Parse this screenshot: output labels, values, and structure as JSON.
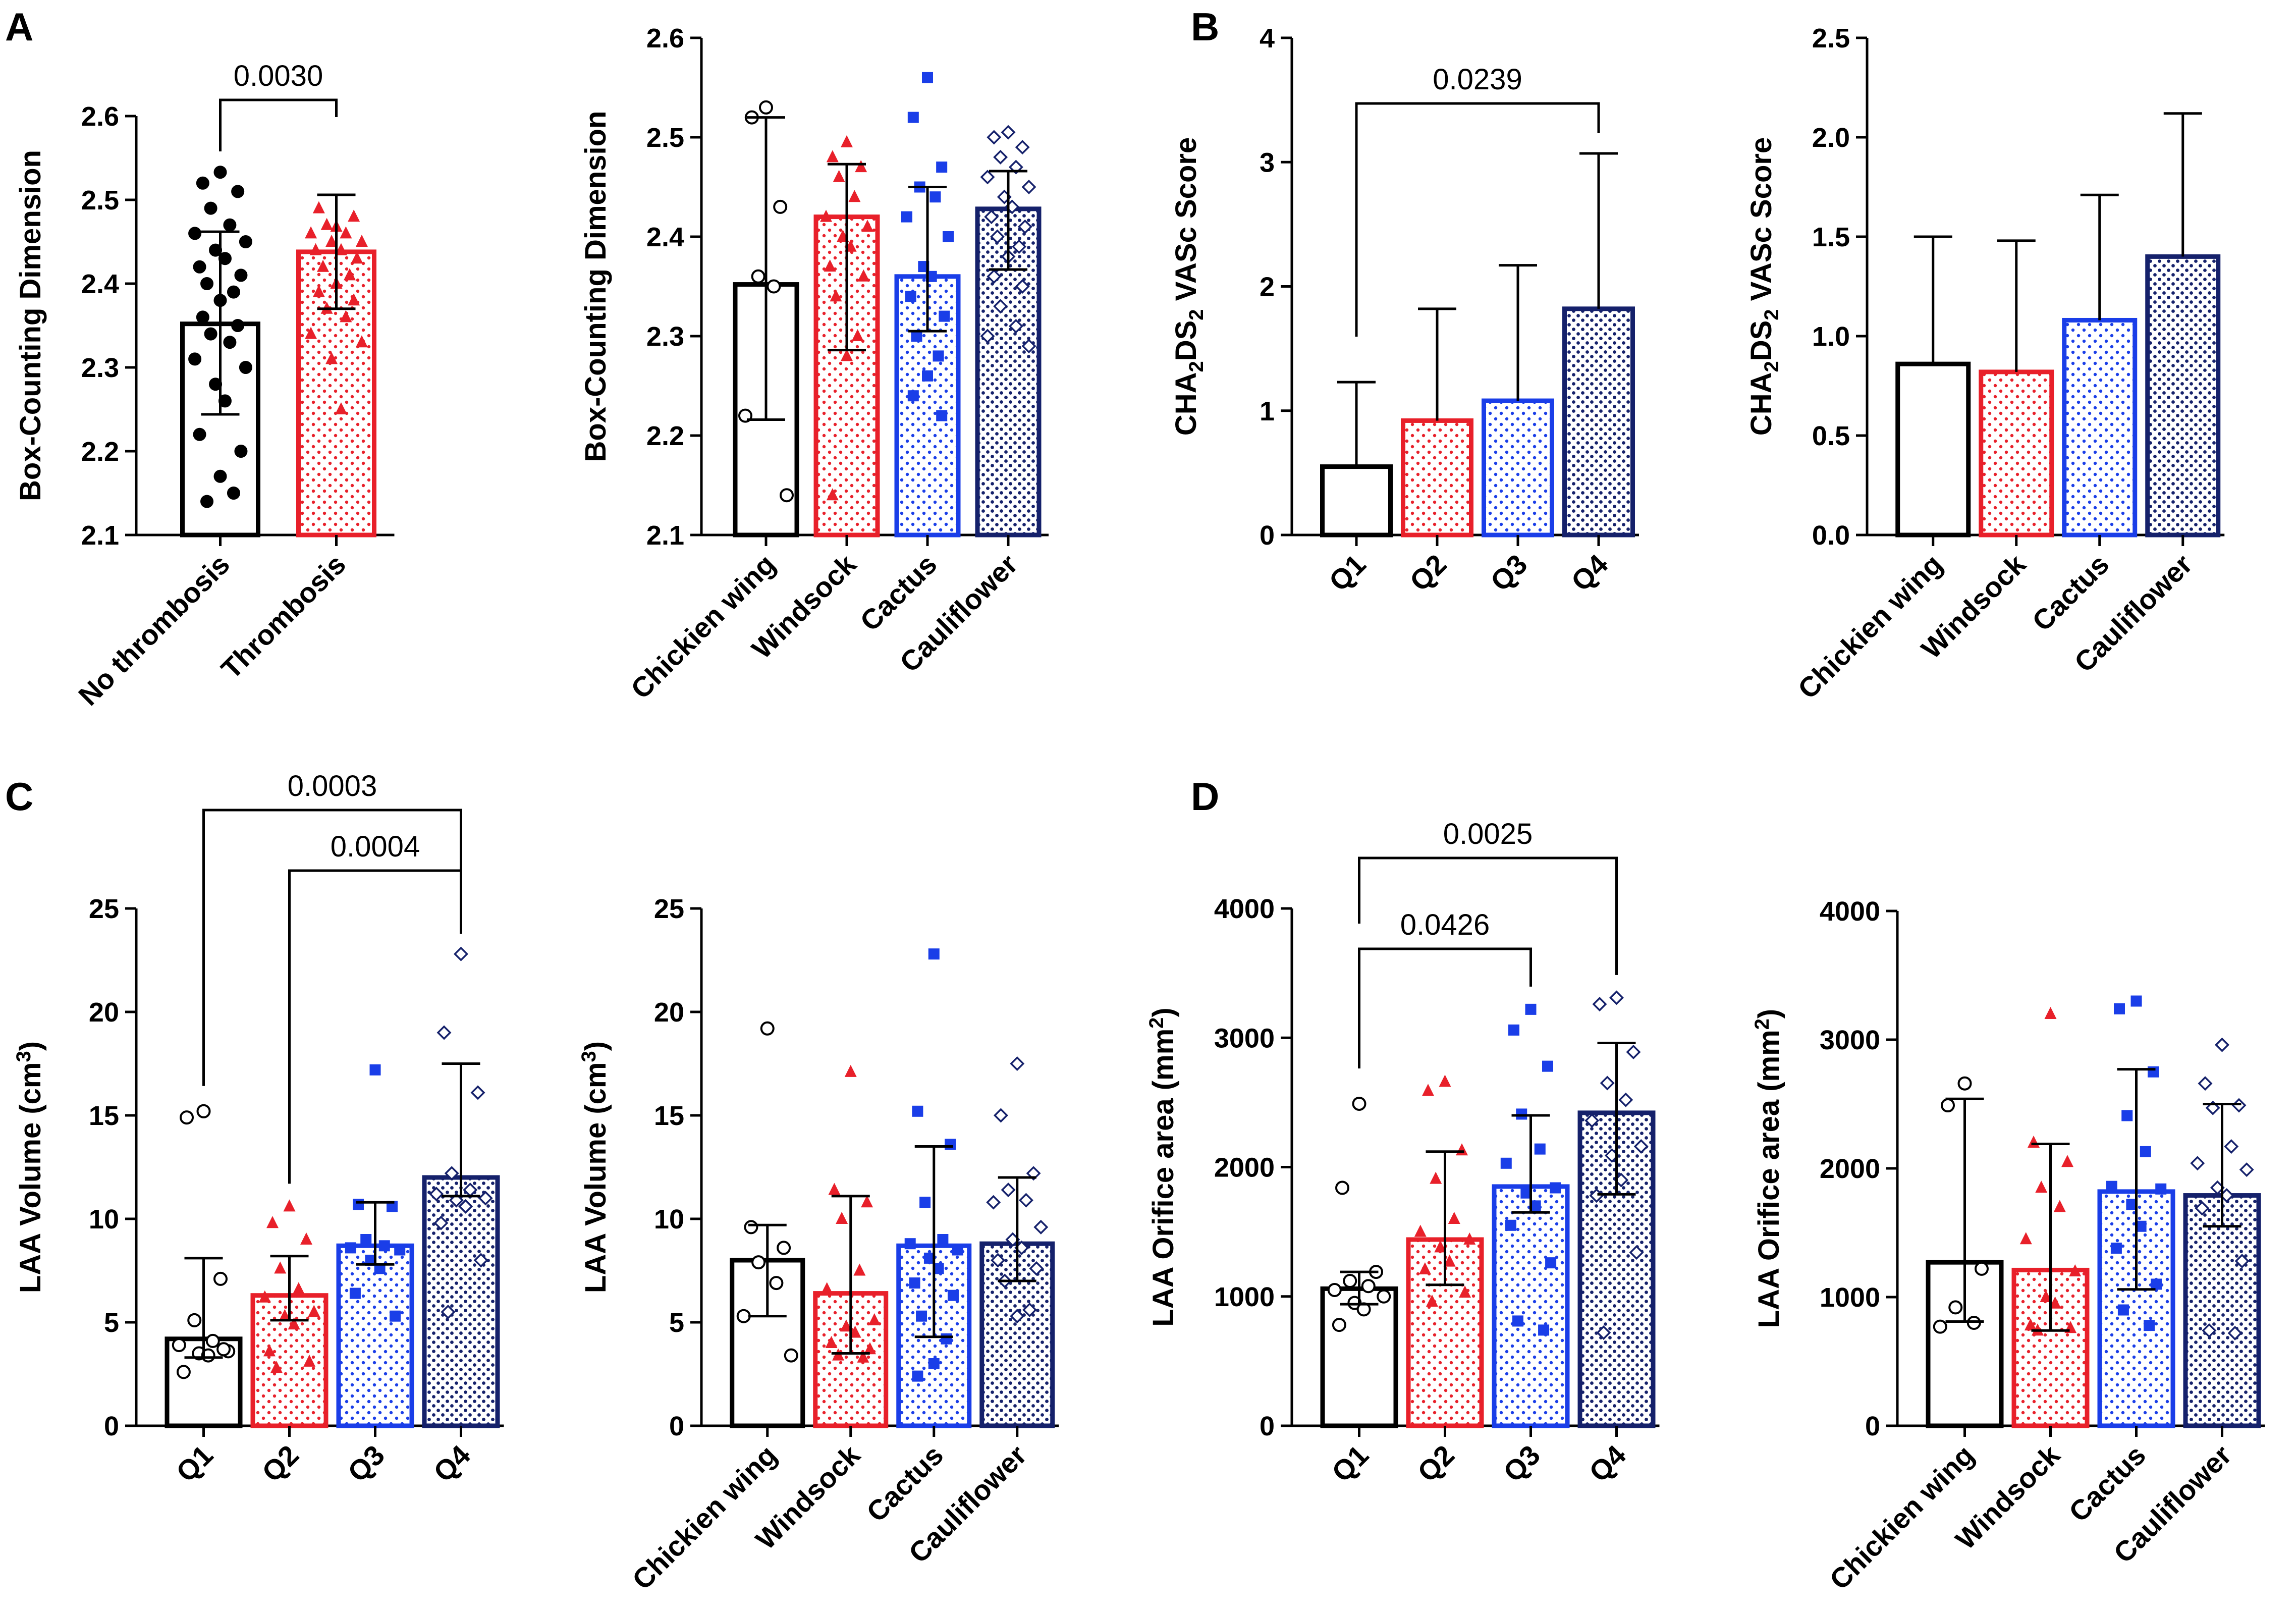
{
  "colors": {
    "black": "#000000",
    "red": "#e8202a",
    "blue": "#1a3ee8",
    "navy": "#15216b"
  },
  "panel_labels": [
    "A",
    "B",
    "C",
    "D"
  ],
  "chart_data": [
    {
      "id": "A1",
      "type": "bar",
      "panel": "A",
      "ylabel": "Box-Counting Dimension",
      "ylim": [
        2.1,
        2.6
      ],
      "yticks": [
        "2.1",
        "2.2",
        "2.3",
        "2.4",
        "2.5",
        "2.6"
      ],
      "categories": [
        "No thrombosis",
        "Thrombosis"
      ],
      "values": [
        2.352,
        2.438
      ],
      "error_high": [
        2.462,
        2.506
      ],
      "error_low": [
        2.244,
        2.37
      ],
      "points": [
        [
          2.533,
          2.52,
          2.51,
          2.49,
          2.47,
          2.46,
          2.45,
          2.44,
          2.43,
          2.42,
          2.41,
          2.4,
          2.39,
          2.38,
          2.36,
          2.35,
          2.34,
          2.33,
          2.31,
          2.3,
          2.28,
          2.26,
          2.22,
          2.2,
          2.14,
          2.15,
          2.17
        ],
        [
          2.468,
          2.49,
          2.48,
          2.47,
          2.46,
          2.46,
          2.45,
          2.45,
          2.44,
          2.44,
          2.43,
          2.42,
          2.41,
          2.4,
          2.39,
          2.38,
          2.37,
          2.36,
          2.34,
          2.33,
          2.31,
          2.25
        ]
      ],
      "comparisons": [
        {
          "from": 0,
          "to": 1,
          "p": "0.0030"
        }
      ]
    },
    {
      "id": "A2",
      "type": "bar",
      "panel": "",
      "ylabel": "Box-Counting Dimension",
      "ylim": [
        2.1,
        2.6
      ],
      "yticks": [
        "2.1",
        "2.2",
        "2.3",
        "2.4",
        "2.5",
        "2.6"
      ],
      "categories": [
        "Chickien wing",
        "Windsock",
        "Cactus",
        "Cauliflower"
      ],
      "values": [
        2.352,
        2.42,
        2.36,
        2.428
      ],
      "error_high": [
        2.52,
        2.473,
        2.45,
        2.466
      ],
      "error_low": [
        2.216,
        2.286,
        2.305,
        2.367
      ],
      "points": [
        [
          2.53,
          2.52,
          2.43,
          2.36,
          2.35,
          2.22,
          2.14
        ],
        [
          2.495,
          2.48,
          2.47,
          2.46,
          2.44,
          2.42,
          2.41,
          2.4,
          2.39,
          2.37,
          2.36,
          2.34,
          2.3,
          2.28,
          2.14
        ],
        [
          2.56,
          2.52,
          2.47,
          2.45,
          2.44,
          2.42,
          2.4,
          2.37,
          2.36,
          2.34,
          2.32,
          2.3,
          2.28,
          2.26,
          2.24,
          2.22
        ],
        [
          2.505,
          2.5,
          2.49,
          2.48,
          2.47,
          2.46,
          2.45,
          2.44,
          2.43,
          2.42,
          2.41,
          2.4,
          2.39,
          2.38,
          2.36,
          2.35,
          2.33,
          2.31,
          2.3,
          2.29
        ]
      ],
      "comparisons": []
    },
    {
      "id": "B1",
      "type": "bar",
      "panel": "B",
      "ylabel": "CHA2DS2 VASc Score",
      "ylabel_parts": [
        "CHA",
        "2",
        "DS",
        "2",
        " VASc Score"
      ],
      "ylim": [
        0,
        4
      ],
      "yticks": [
        "0",
        "1",
        "2",
        "3",
        "4"
      ],
      "categories": [
        "Q1",
        "Q2",
        "Q3",
        "Q4"
      ],
      "values": [
        0.55,
        0.92,
        1.08,
        1.82
      ],
      "error_high": [
        1.23,
        1.82,
        2.17,
        3.07
      ],
      "error_low": [],
      "points": [],
      "comparisons": [
        {
          "from": 0,
          "to": 3,
          "p": "0.0239"
        }
      ]
    },
    {
      "id": "B2",
      "type": "bar",
      "panel": "",
      "ylabel": "CHA2DS2 VASc Score",
      "ylabel_parts": [
        "CHA",
        "2",
        "DS",
        "2",
        " VASc Score"
      ],
      "ylim": [
        0,
        2.5
      ],
      "yticks": [
        "0.0",
        "0.5",
        "1.0",
        "1.5",
        "2.0",
        "2.5"
      ],
      "categories": [
        "Chickien wing",
        "Windsock",
        "Cactus",
        "Cauliflower"
      ],
      "values": [
        0.86,
        0.82,
        1.08,
        1.4
      ],
      "error_high": [
        1.5,
        1.48,
        1.71,
        2.12
      ],
      "error_low": [],
      "points": [],
      "comparisons": []
    },
    {
      "id": "C1",
      "type": "bar",
      "panel": "C",
      "ylabel": "LAA Volume (cm3)",
      "ylabel_parts": [
        "LAA Volume (cm",
        "3",
        ")"
      ],
      "ylim": [
        0,
        25
      ],
      "yticks": [
        "0",
        "5",
        "10",
        "15",
        "20",
        "25"
      ],
      "categories": [
        "Q1",
        "Q2",
        "Q3",
        "Q4"
      ],
      "values": [
        4.2,
        6.3,
        8.7,
        12.0
      ],
      "error_high": [
        8.1,
        8.2,
        10.8,
        17.5
      ],
      "error_low": [
        3.3,
        5.1,
        7.8,
        11.1
      ],
      "points": [
        [
          15.2,
          14.9,
          7.1,
          5.1,
          4.1,
          3.9,
          3.6,
          3.5,
          3.4,
          2.6,
          3.7
        ],
        [
          10.6,
          9.8,
          9.0,
          7.6,
          6.6,
          6.2,
          5.5,
          5.3,
          4.9,
          3.6,
          3.1,
          2.8
        ],
        [
          17.2,
          10.7,
          10.6,
          9.0,
          8.7,
          8.6,
          8.5,
          8.0,
          7.6,
          6.4,
          5.3
        ],
        [
          22.8,
          19.0,
          16.1,
          12.2,
          11.4,
          11.2,
          11.0,
          10.9,
          10.6,
          9.8,
          8.0,
          5.5
        ]
      ],
      "comparisons": [
        {
          "from": 0,
          "to": 3,
          "p": "0.0003"
        },
        {
          "from": 1,
          "to": 3,
          "p": "0.0004"
        }
      ]
    },
    {
      "id": "C2",
      "type": "bar",
      "panel": "",
      "ylabel": "LAA Volume (cm3)",
      "ylabel_parts": [
        "LAA Volume (cm",
        "3",
        ")"
      ],
      "ylim": [
        0,
        25
      ],
      "yticks": [
        "0",
        "5",
        "10",
        "15",
        "20",
        "25"
      ],
      "categories": [
        "Chickien wing",
        "Windsock",
        "Cactus",
        "Cauliflower"
      ],
      "values": [
        8.0,
        6.4,
        8.7,
        8.8
      ],
      "error_high": [
        9.7,
        11.1,
        13.5,
        12.0
      ],
      "error_low": [
        5.3,
        3.5,
        4.3,
        7.0
      ],
      "points": [
        [
          19.2,
          9.6,
          8.6,
          7.9,
          6.9,
          5.3,
          3.4
        ],
        [
          17.1,
          11.4,
          10.8,
          10.0,
          7.5,
          6.6,
          5.1,
          4.8,
          4.5,
          4.0,
          3.7,
          3.4,
          3.3
        ],
        [
          22.8,
          15.2,
          13.6,
          10.8,
          9.0,
          8.8,
          8.5,
          8.1,
          7.6,
          6.9,
          6.3,
          5.3,
          4.2,
          3.0,
          2.4
        ],
        [
          17.5,
          15.0,
          12.2,
          11.4,
          10.9,
          10.8,
          9.6,
          9.0,
          8.6,
          8.0,
          7.6,
          7.0,
          5.6,
          5.3
        ]
      ],
      "comparisons": []
    },
    {
      "id": "D1",
      "type": "bar",
      "panel": "D",
      "ylabel": "LAA Orifice area (mm2)",
      "ylabel_parts": [
        "LAA Orifice area (mm",
        "2",
        ")"
      ],
      "ylim": [
        0,
        4000
      ],
      "yticks": [
        "0",
        "1000",
        "2000",
        "3000",
        "4000"
      ],
      "categories": [
        "Q1",
        "Q2",
        "Q3",
        "Q4"
      ],
      "values": [
        1060,
        1440,
        1850,
        2420
      ],
      "error_high": [
        1190,
        2120,
        2400,
        2960
      ],
      "error_low": [
        940,
        1090,
        1650,
        1790
      ],
      "points": [
        [
          2490,
          1840,
          1190,
          1120,
          1080,
          1050,
          1000,
          950,
          900,
          780
        ],
        [
          2660,
          2590,
          2130,
          1910,
          1600,
          1500,
          1440,
          1380,
          1270,
          1210,
          1030,
          960
        ],
        [
          3220,
          3060,
          2780,
          2410,
          2140,
          2030,
          1840,
          1800,
          1700,
          1550,
          1260,
          810,
          740
        ],
        [
          3310,
          3260,
          2890,
          2650,
          2520,
          2360,
          2160,
          2090,
          1900,
          1780,
          1340,
          720
        ]
      ],
      "comparisons": [
        {
          "from": 0,
          "to": 3,
          "p": "0.0025"
        },
        {
          "from": 0,
          "to": 2,
          "p": "0.0426"
        }
      ]
    },
    {
      "id": "D2",
      "type": "bar",
      "panel": "",
      "ylabel": "LAA Orifice area (mm2)",
      "ylabel_parts": [
        "LAA Orifice area (mm",
        "2",
        ")"
      ],
      "ylim": [
        0,
        4000
      ],
      "yticks": [
        "0",
        "1000",
        "2000",
        "3000",
        "4000"
      ],
      "categories": [
        "Chickien wing",
        "Windsock",
        "Cactus",
        "Cauliflower"
      ],
      "values": [
        1270,
        1210,
        1820,
        1790
      ],
      "error_high": [
        2540,
        2190,
        2770,
        2500
      ],
      "error_low": [
        810,
        740,
        1060,
        1550
      ],
      "points": [
        [
          2660,
          2490,
          1220,
          920,
          800,
          770
        ],
        [
          3200,
          2200,
          2050,
          1850,
          1700,
          1450,
          1200,
          1000,
          950,
          780,
          760,
          740
        ],
        [
          3300,
          3240,
          2750,
          2410,
          2130,
          1860,
          1840,
          1720,
          1550,
          1380,
          1100,
          900,
          780
        ],
        [
          2960,
          2660,
          2490,
          2470,
          2170,
          2040,
          1990,
          1850,
          1790,
          1690,
          1280,
          740,
          720
        ]
      ],
      "comparisons": []
    }
  ]
}
